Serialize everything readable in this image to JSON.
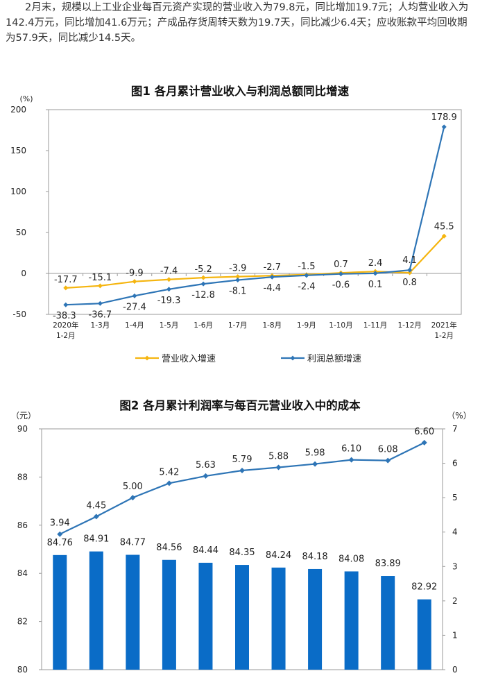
{
  "intro_text": "2月末，规模以上工业企业每百元资产实现的营业收入为79.8元，同比增加19.7元；人均营业收入为142.4万元，同比增加41.6万元；产成品存货周转天数为19.7天，同比减少6.4天；应收账款平均回收期为57.9天，同比减少14.5天。",
  "colors": {
    "revenue": "#F5B50F",
    "profit": "#2E75B6",
    "bar": "#0A6CC7",
    "axis": "#7F7F7F"
  },
  "chart_data": [
    {
      "type": "line",
      "title": "图1  各月累计营业收入与利润总额同比增速",
      "y_unit": "(%)",
      "ylim": [
        -50,
        200
      ],
      "yticks": [
        200,
        150,
        100,
        50,
        0,
        -50
      ],
      "categories": [
        [
          "2020年",
          "1-2月"
        ],
        [
          "1-3月"
        ],
        [
          "1-4月"
        ],
        [
          "1-5月"
        ],
        [
          "1-6月"
        ],
        [
          "1-7月"
        ],
        [
          "1-8月"
        ],
        [
          "1-9月"
        ],
        [
          "1-10月"
        ],
        [
          "1-11月"
        ],
        [
          "1-12月"
        ],
        [
          "2021年",
          "1-2月"
        ]
      ],
      "series": [
        {
          "name": "营业收入增速",
          "values": [
            -17.7,
            -15.1,
            -9.9,
            -7.4,
            -5.2,
            -3.9,
            -2.7,
            -1.5,
            0.7,
            2.4,
            0.8,
            45.5
          ],
          "labels": [
            "-17.7",
            "-15.1",
            "-9.9",
            "-7.4",
            "-5.2",
            "-3.9",
            "-2.7",
            "-1.5",
            "0.7",
            "2.4",
            "0.8",
            "45.5"
          ]
        },
        {
          "name": "利润总额增速",
          "values": [
            -38.3,
            -36.7,
            -27.4,
            -19.3,
            -12.8,
            -8.1,
            -4.4,
            -2.4,
            -0.6,
            0.1,
            4.1,
            178.9
          ],
          "labels": [
            "-38.3",
            "-36.7",
            "-27.4",
            "-19.3",
            "-12.8",
            "-8.1",
            "-4.4",
            "-2.4",
            "-0.6",
            "0.1",
            "4.1",
            "178.9"
          ]
        }
      ],
      "legend_position": "bottom"
    },
    {
      "type": "bar+line",
      "title": "图2  各月累计利润率与每百元营业收入中的成本",
      "left_unit": "（元）",
      "right_unit": "（%）",
      "left_ylim": [
        80,
        90
      ],
      "left_yticks": [
        90,
        88,
        86,
        84,
        82,
        80
      ],
      "right_ylim": [
        0,
        7
      ],
      "right_yticks": [
        7,
        6,
        5,
        4,
        3,
        2,
        1,
        0
      ],
      "bar_values": [
        84.76,
        84.91,
        84.77,
        84.56,
        84.44,
        84.35,
        84.24,
        84.18,
        84.08,
        83.89,
        82.92
      ],
      "bar_labels": [
        "84.76",
        "84.91",
        "84.77",
        "84.56",
        "84.44",
        "84.35",
        "84.24",
        "84.18",
        "84.08",
        "83.89",
        "82.92"
      ],
      "line_values": [
        3.94,
        4.45,
        5.0,
        5.42,
        5.63,
        5.79,
        5.88,
        5.98,
        6.1,
        6.08,
        6.6
      ],
      "line_labels": [
        "3.94",
        "4.45",
        "5.00",
        "5.42",
        "5.63",
        "5.79",
        "5.88",
        "5.98",
        "6.10",
        "6.08",
        "6.60"
      ]
    }
  ]
}
